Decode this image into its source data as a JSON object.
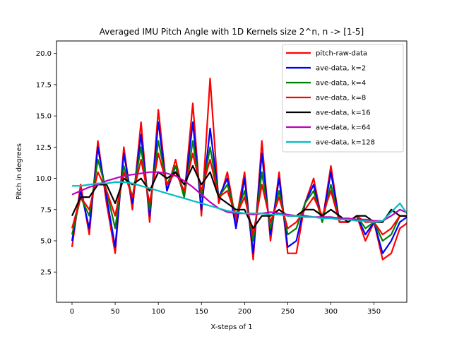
{
  "chart_data": {
    "type": "line",
    "title": "Averaged IMU Pitch Angle with 1D Kernels size 2^n, n -> [1-5]",
    "xlabel": "X-steps of 1",
    "ylabel": "Pitch in degrees",
    "xlim": [
      -18,
      388
    ],
    "ylim": [
      0.08,
      21.0
    ],
    "xticks": [
      0,
      50,
      100,
      150,
      200,
      250,
      300,
      350
    ],
    "yticks": [
      2.5,
      5.0,
      7.5,
      10.0,
      12.5,
      15.0,
      17.5,
      20.0
    ],
    "ytick_labels": [
      "2.5",
      "5.0",
      "7.5",
      "10.0",
      "12.5",
      "15.0",
      "17.5",
      "20.0"
    ],
    "legend_position": "top-right",
    "grid": false,
    "x_step": 10,
    "series": [
      {
        "name": "pitch-raw-data",
        "color": "#ff0000",
        "values": [
          4.5,
          9.5,
          5.5,
          13.0,
          8.0,
          4.0,
          12.5,
          7.5,
          14.5,
          6.5,
          15.5,
          9.0,
          11.5,
          8.5,
          16.0,
          7.0,
          18.0,
          8.0,
          10.5,
          6.5,
          10.5,
          3.5,
          13.0,
          5.0,
          10.5,
          4.0,
          4.0,
          8.0,
          10.0,
          6.5,
          11.0,
          6.5,
          6.5,
          7.0,
          5.0,
          6.5,
          3.5,
          4.0,
          6.0,
          6.5
        ]
      },
      {
        "name": "ave-data, k=2",
        "color": "#0000ff",
        "values": [
          5.0,
          9.0,
          6.0,
          12.5,
          8.5,
          4.5,
          12.0,
          8.0,
          13.5,
          7.0,
          14.5,
          9.0,
          11.0,
          8.5,
          14.5,
          7.5,
          14.0,
          8.5,
          10.0,
          6.0,
          10.0,
          4.0,
          12.0,
          5.5,
          10.0,
          4.5,
          5.0,
          8.0,
          9.5,
          6.5,
          10.5,
          6.5,
          6.5,
          7.0,
          5.5,
          6.5,
          4.0,
          5.0,
          6.5,
          7.0
        ]
      },
      {
        "name": "ave-data, k=4",
        "color": "#008000",
        "values": [
          5.5,
          8.5,
          7.0,
          11.5,
          9.0,
          6.0,
          11.0,
          8.5,
          12.5,
          7.5,
          13.0,
          9.5,
          11.0,
          8.5,
          13.0,
          8.5,
          12.5,
          8.5,
          9.5,
          7.0,
          9.0,
          5.0,
          10.5,
          6.0,
          9.0,
          5.5,
          6.0,
          8.0,
          9.0,
          6.5,
          9.5,
          6.5,
          6.5,
          7.0,
          6.0,
          6.5,
          5.0,
          5.5,
          7.0,
          7.0
        ]
      },
      {
        "name": "ave-data, k=8",
        "color": "#ff0000",
        "values": [
          6.0,
          8.5,
          7.5,
          10.5,
          9.0,
          7.0,
          10.5,
          8.5,
          11.5,
          8.0,
          12.0,
          9.5,
          10.5,
          9.0,
          12.0,
          9.0,
          11.5,
          8.5,
          9.0,
          7.0,
          8.5,
          5.5,
          9.5,
          6.5,
          8.5,
          6.0,
          6.5,
          7.5,
          8.5,
          7.0,
          9.0,
          6.5,
          6.5,
          7.0,
          6.5,
          6.5,
          5.5,
          6.0,
          7.0,
          7.0
        ]
      },
      {
        "name": "ave-data, k=16",
        "color": "#000000",
        "values": [
          7.0,
          8.5,
          8.5,
          9.5,
          9.5,
          8.0,
          10.0,
          9.5,
          10.0,
          9.0,
          10.5,
          10.0,
          10.5,
          9.5,
          11.0,
          9.5,
          10.5,
          8.5,
          8.0,
          7.5,
          7.5,
          6.0,
          7.0,
          7.0,
          7.5,
          7.0,
          7.0,
          7.5,
          7.5,
          7.0,
          7.5,
          7.0,
          6.5,
          7.0,
          7.0,
          6.5,
          6.5,
          7.5,
          7.0,
          7.0
        ]
      },
      {
        "name": "ave-data, k=64",
        "color": "#bf00bf",
        "values": [
          8.7,
          9.0,
          9.3,
          9.5,
          9.8,
          10.0,
          10.2,
          10.3,
          10.4,
          10.5,
          10.5,
          10.4,
          10.2,
          9.8,
          9.3,
          8.7,
          8.1,
          7.6,
          7.3,
          7.2,
          7.2,
          7.1,
          7.2,
          7.3,
          7.2,
          7.1,
          7.0,
          7.0,
          6.9,
          6.9,
          6.9,
          6.8,
          6.8,
          6.7,
          6.7,
          6.6,
          6.6,
          7.0,
          7.5,
          7.2
        ]
      },
      {
        "name": "ave-data, k=128",
        "color": "#00bfbf",
        "values": [
          9.4,
          9.4,
          9.5,
          9.6,
          9.6,
          9.7,
          9.7,
          9.6,
          9.4,
          9.2,
          9.0,
          8.8,
          8.6,
          8.4,
          8.2,
          8.0,
          7.8,
          7.6,
          7.4,
          7.3,
          7.2,
          7.2,
          7.2,
          7.1,
          7.1,
          7.0,
          7.0,
          6.9,
          6.9,
          6.8,
          6.8,
          6.7,
          6.7,
          6.6,
          6.6,
          6.5,
          6.6,
          7.3,
          8.0,
          7.0
        ]
      }
    ]
  }
}
